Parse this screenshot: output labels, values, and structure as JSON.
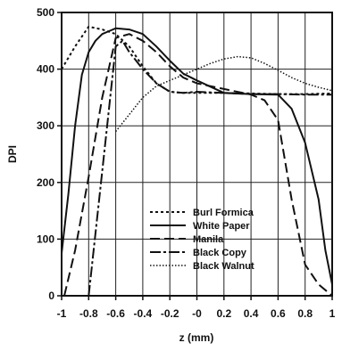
{
  "chart_data": {
    "type": "line",
    "xlabel": "z (mm)",
    "ylabel": "DPI",
    "xlim": [
      -1,
      1
    ],
    "ylim": [
      0,
      500
    ],
    "grid": true,
    "legend_position": "bottom-center",
    "x_ticks": [
      "-1",
      "-0.8",
      "-0.6",
      "-0.4",
      "-0.2",
      "-0",
      "0.2",
      "0.4",
      "0.6",
      "0.8",
      "1"
    ],
    "y_ticks": [
      "0",
      "100",
      "200",
      "300",
      "400",
      "500"
    ],
    "series": [
      {
        "name": "Burl Formica",
        "dash": "short-dash",
        "x": [
          -1,
          -0.9,
          -0.8,
          -0.7,
          -0.6,
          -0.5,
          -0.4,
          -0.3,
          -0.2,
          -0.1,
          0,
          0.2,
          0.4,
          0.6,
          0.8,
          1
        ],
        "y": [
          400,
          440,
          475,
          470,
          462,
          440,
          405,
          375,
          360,
          358,
          358,
          358,
          357,
          356,
          356,
          357
        ]
      },
      {
        "name": "White Paper",
        "dash": "solid",
        "x": [
          -1,
          -0.95,
          -0.9,
          -0.85,
          -0.8,
          -0.75,
          -0.7,
          -0.65,
          -0.6,
          -0.5,
          -0.4,
          -0.3,
          -0.2,
          -0.1,
          0,
          0.2,
          0.4,
          0.6,
          0.7,
          0.8,
          0.9,
          0.95,
          1
        ],
        "y": [
          75,
          180,
          300,
          390,
          430,
          450,
          462,
          467,
          472,
          470,
          462,
          440,
          415,
          392,
          380,
          358,
          356,
          355,
          330,
          270,
          170,
          80,
          20
        ]
      },
      {
        "name": "Manila",
        "dash": "long-dash",
        "x": [
          -0.98,
          -0.9,
          -0.8,
          -0.7,
          -0.6,
          -0.5,
          -0.4,
          -0.3,
          -0.2,
          -0.1,
          0,
          0.2,
          0.4,
          0.5,
          0.6,
          0.7,
          0.8,
          0.9,
          1
        ],
        "y": [
          0,
          80,
          210,
          350,
          455,
          462,
          450,
          430,
          405,
          385,
          375,
          365,
          355,
          345,
          310,
          170,
          55,
          20,
          0
        ]
      },
      {
        "name": "Black Copy",
        "dash": "dash-dot",
        "x": [
          -0.8,
          -0.7,
          -0.6,
          -0.55,
          -0.5,
          -0.4,
          -0.3,
          -0.2,
          -0.1,
          0,
          0.2,
          0.4,
          0.6,
          0.8,
          1
        ],
        "y": [
          0,
          220,
          440,
          450,
          430,
          400,
          375,
          360,
          358,
          360,
          358,
          356,
          356,
          355,
          355
        ]
      },
      {
        "name": "Black Walnut",
        "dash": "dotted",
        "x": [
          -0.6,
          -0.5,
          -0.4,
          -0.3,
          -0.2,
          -0.1,
          0,
          0.1,
          0.2,
          0.3,
          0.4,
          0.5,
          0.6,
          0.7,
          0.8,
          0.9,
          1
        ],
        "y": [
          290,
          320,
          350,
          370,
          380,
          390,
          400,
          410,
          418,
          422,
          420,
          410,
          398,
          385,
          375,
          368,
          362
        ]
      }
    ]
  }
}
